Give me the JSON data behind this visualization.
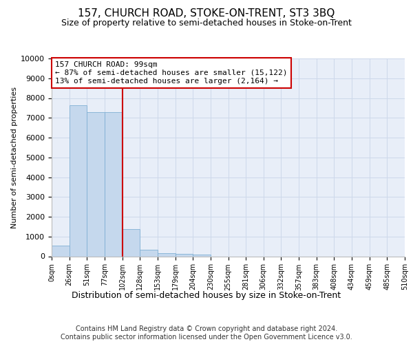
{
  "title": "157, CHURCH ROAD, STOKE-ON-TRENT, ST3 3BQ",
  "subtitle": "Size of property relative to semi-detached houses in Stoke-on-Trent",
  "xlabel": "Distribution of semi-detached houses by size in Stoke-on-Trent",
  "ylabel": "Number of semi-detached properties",
  "footer_line1": "Contains HM Land Registry data © Crown copyright and database right 2024.",
  "footer_line2": "Contains public sector information licensed under the Open Government Licence v3.0.",
  "bin_labels": [
    "0sqm",
    "26sqm",
    "51sqm",
    "77sqm",
    "102sqm",
    "128sqm",
    "153sqm",
    "179sqm",
    "204sqm",
    "230sqm",
    "255sqm",
    "281sqm",
    "306sqm",
    "332sqm",
    "357sqm",
    "383sqm",
    "408sqm",
    "434sqm",
    "459sqm",
    "485sqm",
    "510sqm"
  ],
  "bar_values": [
    550,
    7650,
    7300,
    7300,
    1380,
    330,
    170,
    110,
    100,
    0,
    0,
    0,
    0,
    0,
    0,
    0,
    0,
    0,
    0,
    0
  ],
  "bar_color": "#c5d8ed",
  "bar_edge_color": "#7fafd4",
  "grid_color": "#cdd8ea",
  "background_color": "#e8eef8",
  "annotation_text_line1": "157 CHURCH ROAD: 99sqm",
  "annotation_text_line2": "← 87% of semi-detached houses are smaller (15,122)",
  "annotation_text_line3": "13% of semi-detached houses are larger (2,164) →",
  "annotation_box_color": "#ffffff",
  "annotation_box_edge_color": "#cc0000",
  "vline_color": "#cc0000",
  "vline_x": 4,
  "ylim": [
    0,
    10000
  ],
  "yticks": [
    0,
    1000,
    2000,
    3000,
    4000,
    5000,
    6000,
    7000,
    8000,
    9000,
    10000
  ],
  "title_fontsize": 11,
  "subtitle_fontsize": 9,
  "ylabel_fontsize": 8,
  "xlabel_fontsize": 9,
  "tick_fontsize": 8,
  "annotation_fontsize": 8,
  "footer_fontsize": 7
}
